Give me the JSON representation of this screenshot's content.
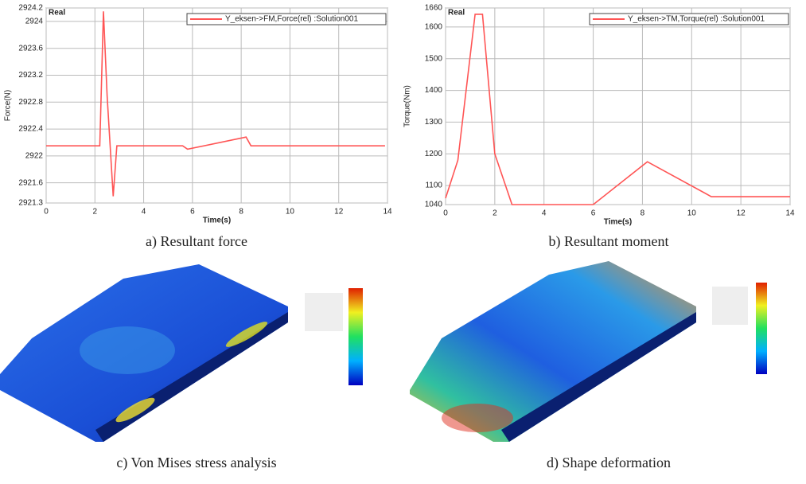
{
  "chart_data": [
    {
      "type": "line",
      "corner_label": "Real",
      "xlabel": "Time(s)",
      "ylabel": "Force(N)",
      "x": [
        0,
        2.2,
        2.35,
        2.5,
        2.75,
        2.9,
        5.6,
        5.8,
        8.2,
        8.4,
        13.9
      ],
      "series": [
        {
          "name": "Y_eksen->FM,Force(rel) :Solution001",
          "color": "#ff5555",
          "values": [
            2922.15,
            2922.15,
            2924.15,
            2922.9,
            2921.4,
            2922.15,
            2922.15,
            2922.1,
            2922.28,
            2922.15,
            2922.15
          ]
        }
      ],
      "xlim": [
        0,
        14
      ],
      "xticks": [
        0,
        2,
        4,
        6,
        8,
        10,
        12,
        14
      ],
      "ylim": [
        2921.3,
        2924.2
      ],
      "yticks": [
        2921.3,
        2921.6,
        2922,
        2922.4,
        2922.8,
        2923.2,
        2923.6,
        2924,
        2924.2
      ],
      "grid": true,
      "legend": "upper right",
      "caption": "a) Resultant force"
    },
    {
      "type": "line",
      "corner_label": "Real",
      "xlabel": "Time(s)",
      "ylabel": "Torque(Nm)",
      "x": [
        0,
        0.5,
        1.2,
        1.5,
        2.0,
        2.7,
        6,
        8.2,
        10.8,
        14
      ],
      "series": [
        {
          "name": "Y_eksen->TM,Torque(rel) :Solution001",
          "color": "#ff5555",
          "values": [
            1060,
            1180,
            1640,
            1640,
            1200,
            1040,
            1040,
            1175,
            1065,
            1065
          ]
        }
      ],
      "xlim": [
        0,
        14
      ],
      "xticks": [
        0,
        2,
        4,
        6,
        8,
        10,
        12,
        14
      ],
      "ylim": [
        1040,
        1660
      ],
      "yticks": [
        1040,
        1100,
        1200,
        1300,
        1400,
        1500,
        1600,
        1660
      ],
      "grid": true,
      "legend": "upper right",
      "caption": "b) Resultant moment"
    }
  ],
  "figures": [
    {
      "caption": "c) Von Mises stress analysis"
    },
    {
      "caption": "d) Shape deformation"
    }
  ]
}
